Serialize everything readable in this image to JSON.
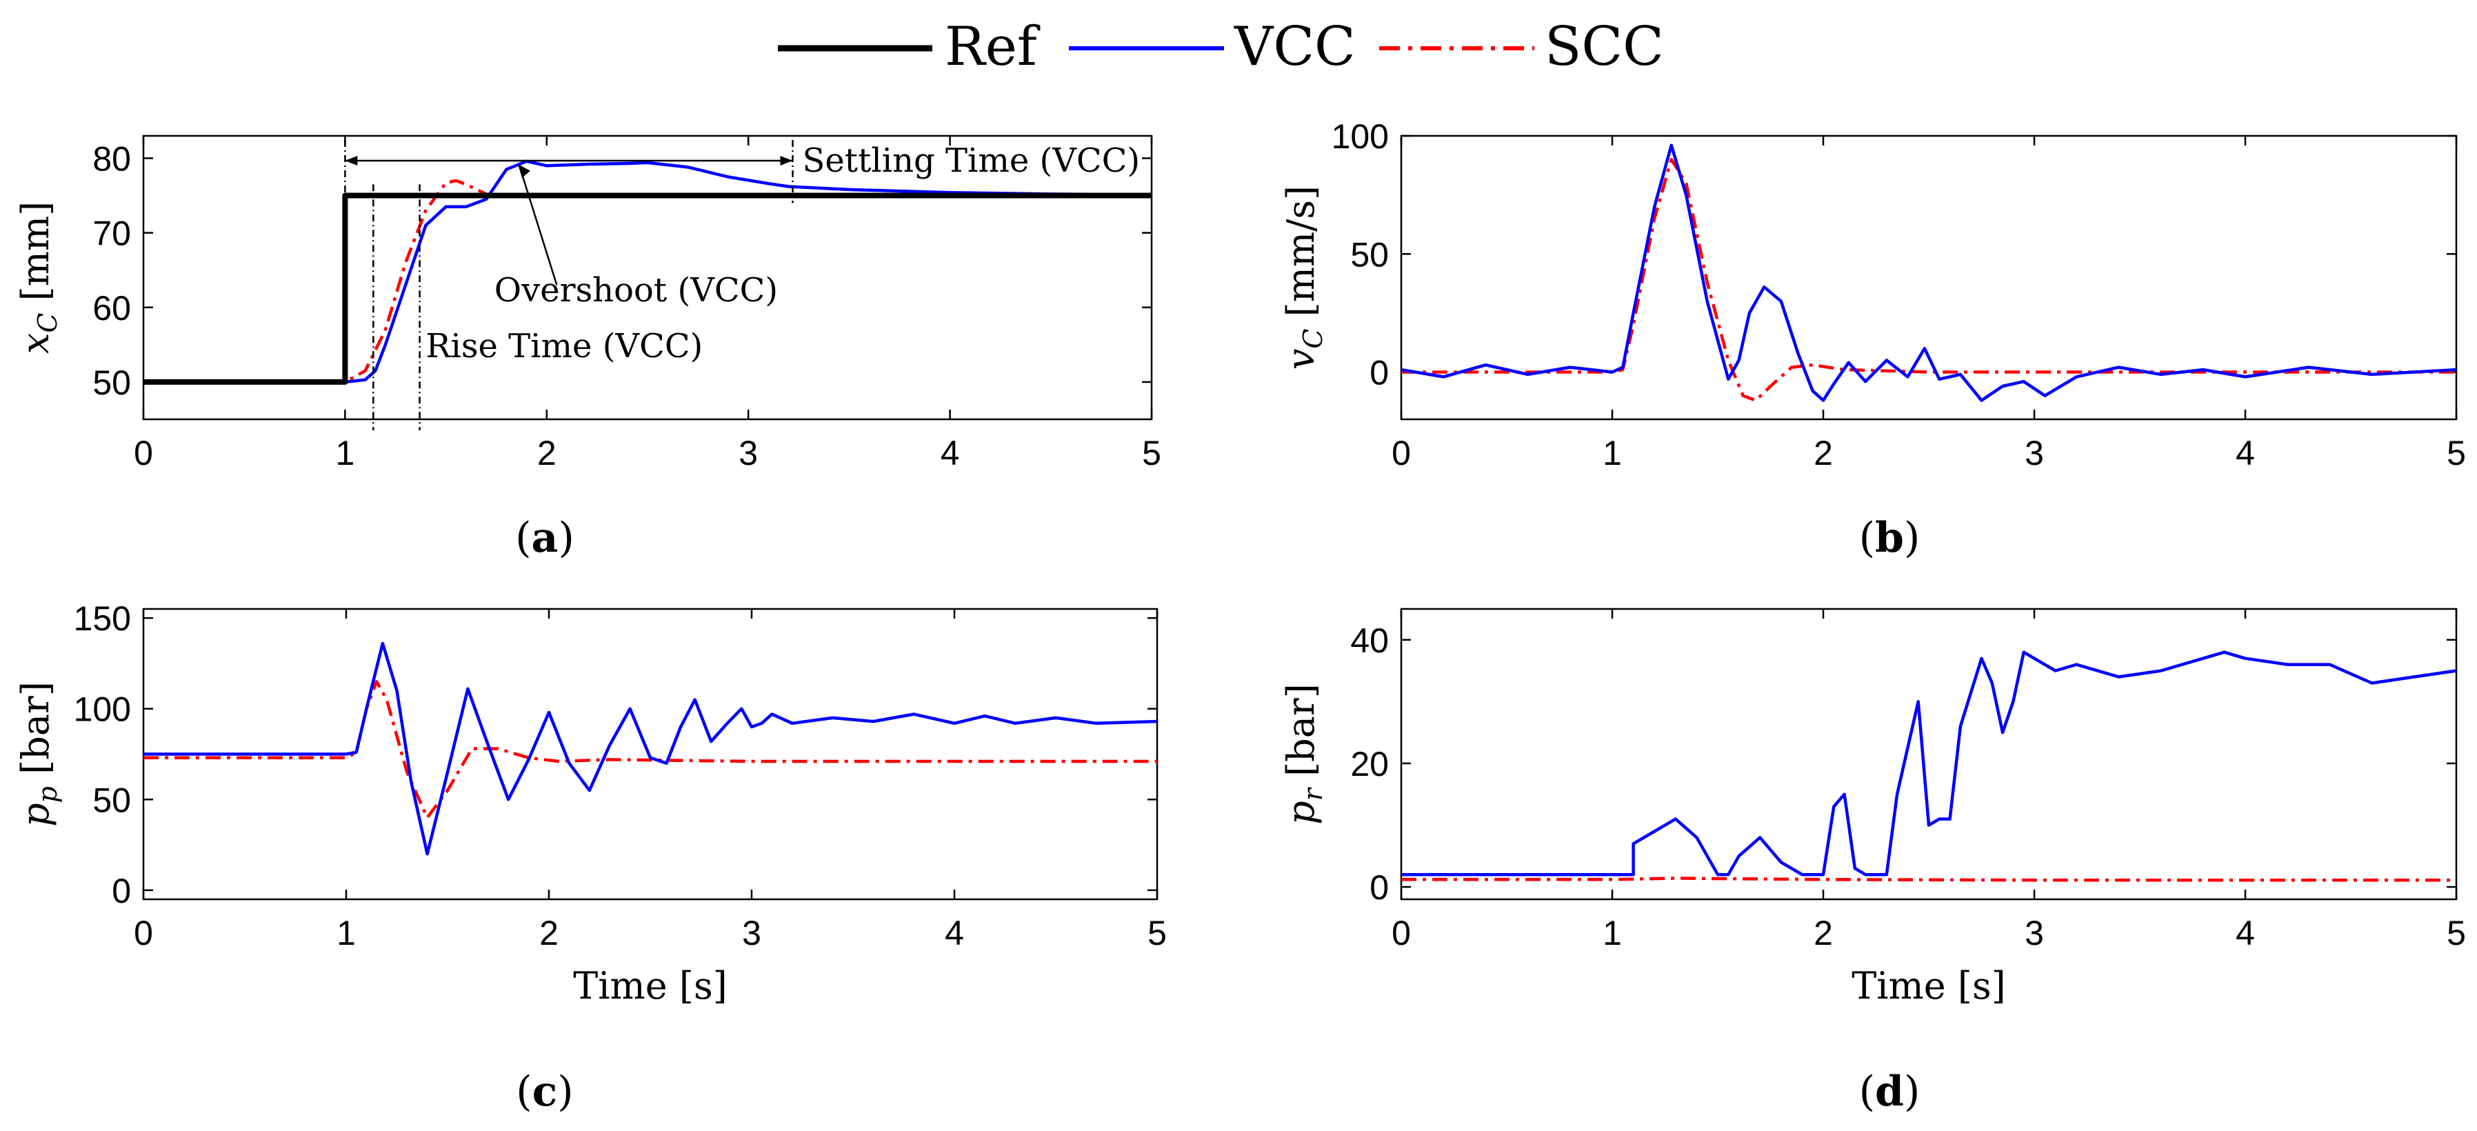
{
  "figure": {
    "legend": [
      {
        "name": "Ref",
        "color": "#000000",
        "style": "solid-thick"
      },
      {
        "name": "VCC",
        "color": "#0000ff",
        "style": "solid"
      },
      {
        "name": "SCC",
        "color": "#ff0000",
        "style": "dash-dot"
      }
    ]
  },
  "chart_data": [
    {
      "id": "a",
      "type": "line",
      "caption": "(a)",
      "xlabel": "",
      "ylabel": "x_C [mm]",
      "ylabel_main": "x",
      "ylabel_sub": "C",
      "ylabel_unit": " [mm]",
      "xlim": [
        0,
        5
      ],
      "ylim": [
        45,
        83
      ],
      "xticks": [
        0,
        1,
        2,
        3,
        4,
        5
      ],
      "xtick_labels": [
        "0",
        "1",
        "2",
        "3",
        "4",
        "5"
      ],
      "yticks": [
        50,
        60,
        70,
        80
      ],
      "ytick_labels": [
        "50",
        "60",
        "70",
        "80"
      ],
      "annotations": {
        "settling": "Settling Time (VCC)",
        "overshoot": "Overshoot (VCC)",
        "rise": "Rise Time (VCC)"
      },
      "markers": {
        "rise_start": 1.14,
        "rise_end": 1.37,
        "settle_start": 1.0,
        "settle_end": 3.22,
        "overshoot_t": 1.85,
        "overshoot_v": 79.6
      },
      "series": [
        {
          "name": "Ref",
          "x": [
            0,
            1,
            1,
            5
          ],
          "y": [
            50,
            50,
            75,
            75
          ]
        },
        {
          "name": "VCC",
          "x": [
            0,
            1.0,
            1.1,
            1.15,
            1.2,
            1.3,
            1.4,
            1.5,
            1.6,
            1.7,
            1.8,
            1.9,
            2.0,
            2.2,
            2.4,
            2.5,
            2.7,
            2.9,
            3.1,
            3.2,
            3.5,
            4.0,
            4.5,
            5.0
          ],
          "y": [
            50,
            50,
            50.3,
            51.5,
            55,
            63,
            71,
            73.5,
            73.5,
            74.5,
            78.5,
            79.6,
            79,
            79.2,
            79.3,
            79.4,
            78.8,
            77.5,
            76.6,
            76.2,
            75.8,
            75.4,
            75.2,
            75.1
          ]
        },
        {
          "name": "SCC",
          "x": [
            0,
            1.0,
            1.1,
            1.2,
            1.3,
            1.4,
            1.5,
            1.55,
            1.6,
            1.7,
            1.8,
            2.0,
            3.0,
            5.0
          ],
          "y": [
            50,
            50,
            51.5,
            57,
            66,
            73,
            76.7,
            77,
            76.5,
            75.2,
            74.9,
            75,
            75,
            75
          ]
        }
      ]
    },
    {
      "id": "b",
      "type": "line",
      "caption": "(b)",
      "xlabel": "",
      "ylabel": "v_C [mm/s]",
      "ylabel_main": "v",
      "ylabel_sub": "C",
      "ylabel_unit": " [mm/s]",
      "xlim": [
        0,
        5
      ],
      "ylim": [
        -20,
        100
      ],
      "xticks": [
        0,
        1,
        2,
        3,
        4,
        5
      ],
      "xtick_labels": [
        "0",
        "1",
        "2",
        "3",
        "4",
        "5"
      ],
      "yticks": [
        0,
        50,
        100
      ],
      "ytick_labels": [
        "0",
        "50",
        "100"
      ],
      "series": [
        {
          "name": "VCC",
          "x": [
            0,
            0.2,
            0.4,
            0.6,
            0.8,
            1.0,
            1.05,
            1.1,
            1.2,
            1.28,
            1.35,
            1.45,
            1.55,
            1.6,
            1.65,
            1.72,
            1.8,
            1.88,
            1.95,
            2.0,
            2.05,
            2.12,
            2.2,
            2.3,
            2.4,
            2.48,
            2.55,
            2.65,
            2.75,
            2.85,
            2.95,
            3.05,
            3.2,
            3.4,
            3.6,
            3.8,
            4.0,
            4.3,
            4.6,
            5.0
          ],
          "y": [
            1,
            -2,
            3,
            -1,
            2,
            0,
            2,
            25,
            70,
            96,
            75,
            30,
            -3,
            5,
            25,
            36,
            30,
            8,
            -8,
            -12,
            -5,
            4,
            -4,
            5,
            -2,
            10,
            -3,
            -1,
            -12,
            -6,
            -4,
            -10,
            -2,
            2,
            -1,
            1,
            -2,
            2,
            -1,
            1
          ]
        },
        {
          "name": "SCC",
          "x": [
            0,
            1.0,
            1.05,
            1.1,
            1.2,
            1.28,
            1.35,
            1.45,
            1.55,
            1.62,
            1.68,
            1.75,
            1.85,
            1.95,
            2.1,
            2.5,
            3.0,
            4.0,
            5.0
          ],
          "y": [
            0,
            0,
            1,
            20,
            65,
            90,
            80,
            38,
            5,
            -10,
            -12,
            -6,
            2,
            3,
            1,
            0,
            0,
            0,
            0
          ]
        }
      ]
    },
    {
      "id": "c",
      "type": "line",
      "caption": "(c)",
      "xlabel": "Time [s]",
      "ylabel": "p_p [bar]",
      "ylabel_main": "p",
      "ylabel_sub": "p",
      "ylabel_unit": " [bar]",
      "xlim": [
        0,
        5
      ],
      "ylim": [
        -5,
        155
      ],
      "xticks": [
        0,
        1,
        2,
        3,
        4,
        5
      ],
      "xtick_labels": [
        "0",
        "1",
        "2",
        "3",
        "4",
        "5"
      ],
      "yticks": [
        0,
        50,
        100,
        150
      ],
      "ytick_labels": [
        "0",
        "50",
        "100",
        "150"
      ],
      "series": [
        {
          "name": "VCC",
          "x": [
            0,
            1.0,
            1.05,
            1.1,
            1.18,
            1.25,
            1.32,
            1.4,
            1.5,
            1.6,
            1.7,
            1.8,
            1.9,
            2.0,
            2.1,
            2.2,
            2.3,
            2.4,
            2.5,
            2.58,
            2.65,
            2.72,
            2.8,
            2.88,
            2.95,
            3.0,
            3.05,
            3.1,
            3.2,
            3.4,
            3.6,
            3.8,
            4.0,
            4.15,
            4.3,
            4.5,
            4.7,
            5.0
          ],
          "y": [
            75,
            75,
            76,
            100,
            136,
            110,
            60,
            20,
            65,
            111,
            80,
            50,
            72,
            98,
            70,
            55,
            80,
            100,
            73,
            70,
            90,
            105,
            82,
            92,
            100,
            90,
            92,
            97,
            92,
            95,
            93,
            97,
            92,
            96,
            92,
            95,
            92,
            93
          ]
        },
        {
          "name": "SCC",
          "x": [
            0,
            1.0,
            1.05,
            1.1,
            1.15,
            1.2,
            1.3,
            1.4,
            1.5,
            1.62,
            1.75,
            1.9,
            2.05,
            2.3,
            3.0,
            4.0,
            5.0
          ],
          "y": [
            73,
            73,
            76,
            100,
            115,
            105,
            65,
            40,
            55,
            78,
            78,
            73,
            71,
            72,
            71,
            71,
            71
          ]
        }
      ]
    },
    {
      "id": "d",
      "type": "line",
      "caption": "(d)",
      "xlabel": "Time [s]",
      "ylabel": "p_r [bar]",
      "ylabel_main": "p",
      "ylabel_sub": "r",
      "ylabel_unit": " [bar]",
      "xlim": [
        0,
        5
      ],
      "ylim": [
        -2,
        45
      ],
      "xticks": [
        0,
        1,
        2,
        3,
        4,
        5
      ],
      "xtick_labels": [
        "0",
        "1",
        "2",
        "3",
        "4",
        "5"
      ],
      "yticks": [
        0,
        20,
        40
      ],
      "ytick_labels": [
        "0",
        "20",
        "40"
      ],
      "series": [
        {
          "name": "VCC",
          "x": [
            0,
            1.1,
            1.1,
            1.2,
            1.3,
            1.4,
            1.5,
            1.55,
            1.6,
            1.7,
            1.8,
            1.9,
            2.0,
            2.05,
            2.1,
            2.15,
            2.2,
            2.3,
            2.35,
            2.45,
            2.5,
            2.55,
            2.6,
            2.65,
            2.75,
            2.8,
            2.85,
            2.9,
            2.95,
            3.0,
            3.1,
            3.2,
            3.4,
            3.6,
            3.8,
            3.9,
            4.0,
            4.2,
            4.4,
            4.6,
            4.8,
            5.0
          ],
          "y": [
            2,
            2,
            7,
            9,
            11,
            8,
            2,
            2,
            5,
            8,
            4,
            2,
            2,
            13,
            15,
            3,
            2,
            2,
            15,
            30,
            10,
            11,
            11,
            26,
            37,
            33,
            25,
            30,
            38,
            37,
            35,
            36,
            34,
            35,
            37,
            38,
            37,
            36,
            36,
            33,
            34,
            35
          ]
        },
        {
          "name": "SCC",
          "x": [
            0,
            1.0,
            1.3,
            2.0,
            3.0,
            4.0,
            5.0
          ],
          "y": [
            1.2,
            1.2,
            1.4,
            1.2,
            1.1,
            1.1,
            1.1
          ]
        }
      ]
    }
  ]
}
